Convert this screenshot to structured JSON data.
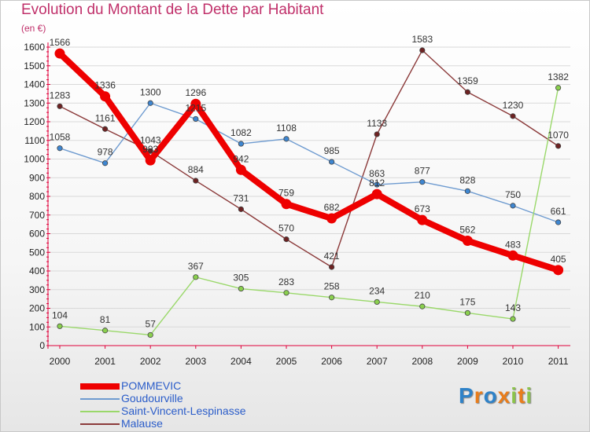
{
  "header": {
    "title": "Evolution du Montant de la Dette par Habitant",
    "unit": "(en €)"
  },
  "colors": {
    "title": "#c0306a",
    "legend_text": "#2a5cc9",
    "axis": "#e0003a",
    "grid": "#d9d9d9",
    "marker_edge": "#444444"
  },
  "logo": {
    "letters": [
      "P",
      "r",
      "o",
      "x",
      "i",
      "t",
      "i"
    ],
    "colors": [
      "#2e82c8",
      "#e97d1b",
      "#2e82c8",
      "#e97d1b",
      "#8bc34a",
      "#e97d1b",
      "#8bc34a"
    ]
  },
  "chart_data": {
    "type": "line",
    "title": "Evolution du Montant de la Dette par Habitant",
    "ylabel": "(en €)",
    "xlabel": "",
    "categories": [
      "2000",
      "2001",
      "2002",
      "2003",
      "2004",
      "2005",
      "2006",
      "2007",
      "2008",
      "2009",
      "2010",
      "2011"
    ],
    "ylim": [
      0,
      1600
    ],
    "yticks": [
      0,
      100,
      200,
      300,
      400,
      500,
      600,
      700,
      800,
      900,
      1000,
      1100,
      1200,
      1300,
      1400,
      1500,
      1600
    ],
    "grid": "horizontal",
    "legend_position": "bottom-left",
    "series": [
      {
        "name": "POMMEVIC",
        "color": "#ee0000",
        "marker": "#ee0000",
        "values": [
          1566,
          1336,
          993,
          1296,
          942,
          759,
          682,
          812,
          673,
          562,
          483,
          405
        ],
        "labels": [
          "1566",
          "1336",
          "993",
          "1296",
          "942",
          "759",
          "682",
          "812",
          "673",
          "562",
          "483",
          "405"
        ]
      },
      {
        "name": "Goudourville",
        "color": "#6e9bd0",
        "marker": "#3e86d1",
        "values": [
          1058,
          978,
          1300,
          1215,
          1082,
          1108,
          985,
          863,
          877,
          828,
          750,
          661
        ],
        "labels": [
          "1058",
          "978",
          "1300",
          "1215",
          "1082",
          "1108",
          "985",
          "863",
          "877",
          "828",
          "750",
          "661"
        ]
      },
      {
        "name": "Saint-Vincent-Lespinasse",
        "color": "#9ad86a",
        "marker": "#8ad04e",
        "values": [
          104,
          81,
          57,
          367,
          305,
          283,
          258,
          234,
          210,
          175,
          143,
          1382
        ],
        "labels": [
          "104",
          "81",
          "57",
          "367",
          "305",
          "283",
          "258",
          "234",
          "210",
          "175",
          "143",
          "1382"
        ]
      },
      {
        "name": "Malause",
        "color": "#8b3a3a",
        "marker": "#6e2222",
        "values": [
          1283,
          1161,
          1043,
          884,
          731,
          570,
          421,
          1133,
          1583,
          1359,
          1230,
          1070
        ],
        "labels": [
          "1283",
          "1161",
          "1043",
          "884",
          "731",
          "570",
          "421",
          "1133",
          "1583",
          "1359",
          "1230",
          "1070"
        ]
      }
    ]
  }
}
